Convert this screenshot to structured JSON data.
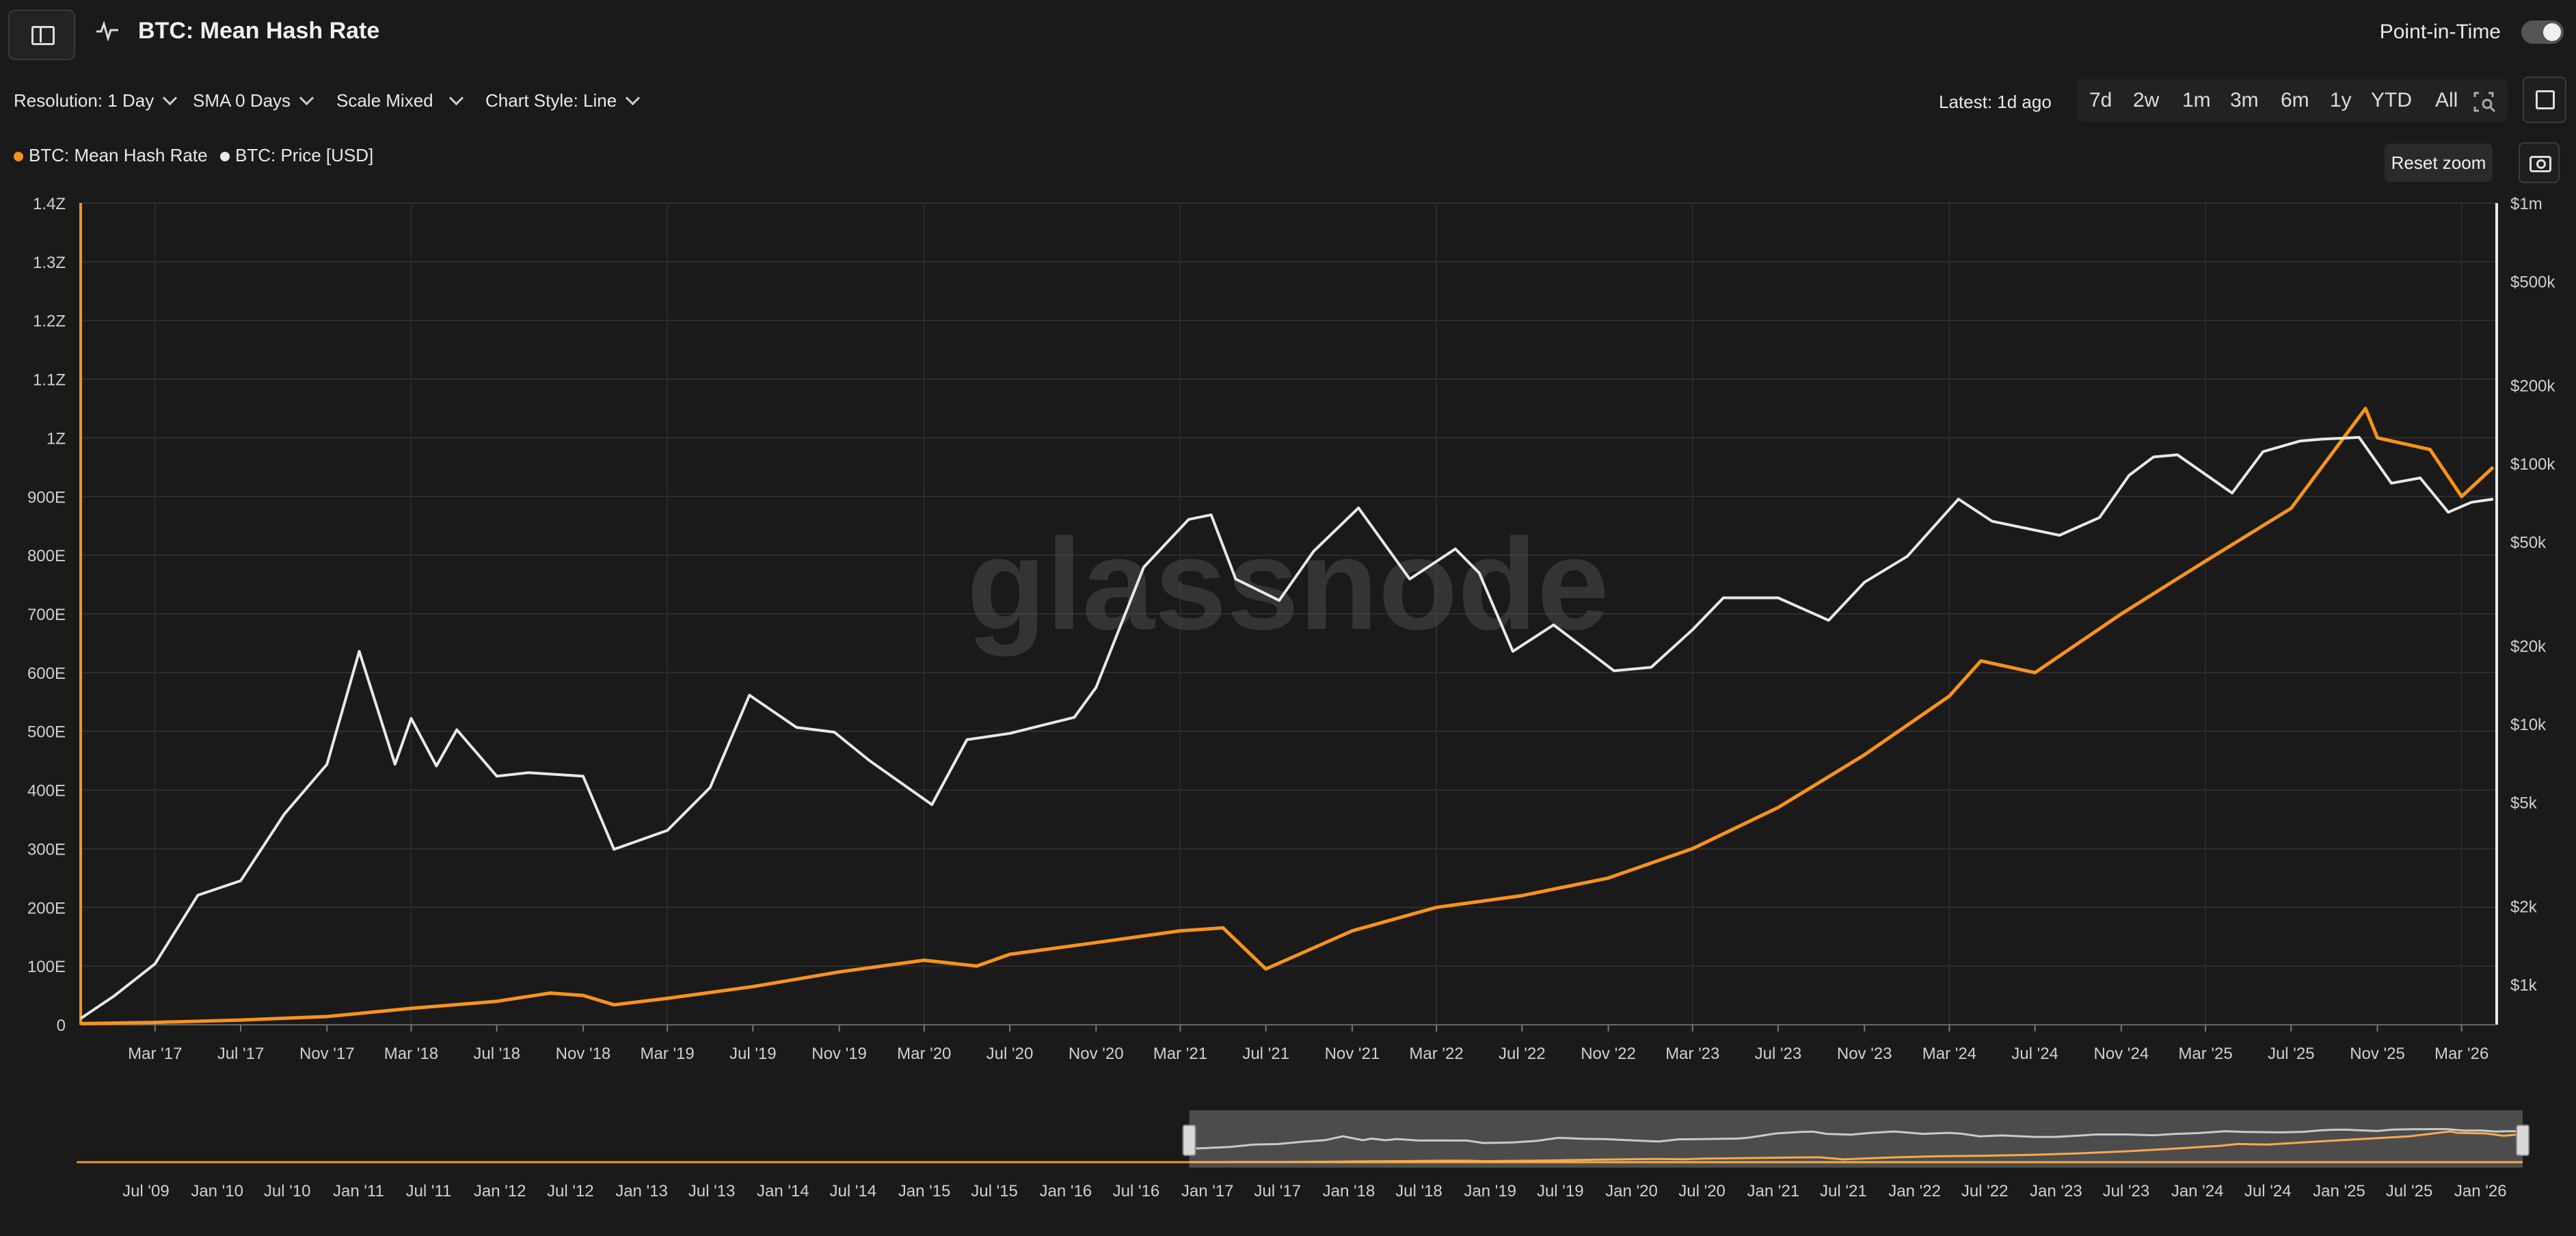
{
  "header": {
    "title": "BTC: Mean Hash Rate",
    "point_in_time_label": "Point-in-Time"
  },
  "controls": {
    "resolution": "Resolution: 1 Day",
    "sma": "SMA 0 Days",
    "scale": "Scale Mixed",
    "chart_style": "Chart Style: Line",
    "latest": "Latest: 1d ago",
    "ranges": [
      "7d",
      "2w",
      "1m",
      "3m",
      "6m",
      "1y",
      "YTD",
      "All"
    ],
    "reset_zoom": "Reset zoom"
  },
  "watermark": "glassnode",
  "colors": {
    "hash_rate": "#f7931a",
    "price": "#e8e8e8",
    "background": "#1a1a1a"
  },
  "chart_data": {
    "type": "line",
    "legend_placement": "top-left",
    "grid": true,
    "x_range": [
      "2016-11-15",
      "2026-04-20"
    ],
    "x_ticks": [
      "Mar '17",
      "Jul '17",
      "Nov '17",
      "Mar '18",
      "Jul '18",
      "Nov '18",
      "Mar '19",
      "Jul '19",
      "Nov '19",
      "Mar '20",
      "Jul '20",
      "Nov '20",
      "Mar '21",
      "Jul '21",
      "Nov '21",
      "Mar '22",
      "Jul '22",
      "Nov '22",
      "Mar '23",
      "Jul '23",
      "Nov '23",
      "Mar '24",
      "Jul '24",
      "Nov '24",
      "Mar '25",
      "Jul '25",
      "Nov '25",
      "Mar '26"
    ],
    "y_left": {
      "scale": "linear",
      "unit": "E",
      "range": [
        0,
        1400
      ],
      "tick_values": [
        0,
        100,
        200,
        300,
        400,
        500,
        600,
        700,
        800,
        900,
        1000,
        1100,
        1200,
        1300,
        1400
      ],
      "tick_labels": [
        "0",
        "100E",
        "200E",
        "300E",
        "400E",
        "500E",
        "600E",
        "700E",
        "800E",
        "900E",
        "1Z",
        "1.1Z",
        "1.2Z",
        "1.3Z",
        "1.4Z"
      ]
    },
    "y_right": {
      "scale": "log",
      "range": [
        700,
        1000000
      ],
      "tick_values": [
        1000,
        2000,
        5000,
        10000,
        20000,
        50000,
        100000,
        200000,
        500000,
        1000000
      ],
      "tick_labels": [
        "$1k",
        "$2k",
        "$5k",
        "$10k",
        "$20k",
        "$50k",
        "$100k",
        "$200k",
        "$500k",
        "$1m"
      ]
    },
    "series": [
      {
        "name": "BTC: Mean Hash Rate",
        "axis": "left",
        "x": [
          "2016-11-15",
          "2017-03-01",
          "2017-07-01",
          "2017-11-01",
          "2018-03-01",
          "2018-07-01",
          "2018-09-15",
          "2018-11-01",
          "2018-12-15",
          "2019-03-01",
          "2019-07-01",
          "2019-11-01",
          "2020-03-01",
          "2020-05-15",
          "2020-07-01",
          "2020-11-01",
          "2021-03-01",
          "2021-05-01",
          "2021-07-01",
          "2021-11-01",
          "2022-03-01",
          "2022-07-01",
          "2022-11-01",
          "2023-03-01",
          "2023-07-01",
          "2023-11-01",
          "2024-03-01",
          "2024-04-15",
          "2024-07-01",
          "2024-11-01",
          "2025-03-01",
          "2025-07-01",
          "2025-10-15",
          "2025-11-01",
          "2026-01-15",
          "2026-03-01",
          "2026-04-15"
        ],
        "y": [
          2,
          4,
          8,
          14,
          28,
          40,
          54,
          50,
          34,
          45,
          65,
          90,
          110,
          100,
          120,
          140,
          160,
          165,
          95,
          160,
          200,
          220,
          250,
          300,
          370,
          460,
          560,
          620,
          600,
          700,
          790,
          880,
          1050,
          1000,
          980,
          900,
          950
        ]
      },
      {
        "name": "BTC: Price [USD]",
        "axis": "right",
        "x": [
          "2016-11-15",
          "2017-01-01",
          "2017-03-01",
          "2017-05-01",
          "2017-07-01",
          "2017-09-01",
          "2017-11-01",
          "2017-12-17",
          "2018-02-06",
          "2018-03-01",
          "2018-04-06",
          "2018-05-05",
          "2018-07-01",
          "2018-08-15",
          "2018-11-01",
          "2018-12-15",
          "2019-03-01",
          "2019-05-01",
          "2019-06-26",
          "2019-09-01",
          "2019-10-25",
          "2019-12-15",
          "2020-03-12",
          "2020-05-01",
          "2020-07-01",
          "2020-10-01",
          "2020-11-01",
          "2021-01-08",
          "2021-03-13",
          "2021-04-14",
          "2021-05-19",
          "2021-07-20",
          "2021-09-07",
          "2021-11-10",
          "2022-01-22",
          "2022-03-28",
          "2022-05-01",
          "2022-06-18",
          "2022-08-15",
          "2022-11-09",
          "2023-01-01",
          "2023-03-01",
          "2023-04-14",
          "2023-07-01",
          "2023-09-11",
          "2023-11-01",
          "2024-01-01",
          "2024-03-14",
          "2024-05-01",
          "2024-08-05",
          "2024-10-01",
          "2024-11-12",
          "2024-12-17",
          "2025-01-20",
          "2025-04-08",
          "2025-05-22",
          "2025-07-14",
          "2025-08-14",
          "2025-10-06",
          "2025-11-21",
          "2026-01-01",
          "2026-02-10",
          "2026-03-15",
          "2026-04-15"
        ],
        "y": [
          740,
          900,
          1200,
          2200,
          2500,
          4500,
          7000,
          19000,
          7000,
          10500,
          6900,
          9500,
          6300,
          6500,
          6300,
          3300,
          3900,
          5700,
          12900,
          9700,
          9300,
          7200,
          4900,
          8700,
          9200,
          10600,
          13800,
          40000,
          61000,
          63500,
          36000,
          29800,
          46000,
          67500,
          36000,
          47000,
          38000,
          19000,
          24000,
          16000,
          16500,
          23000,
          30500,
          30500,
          25000,
          35000,
          44000,
          73000,
          60000,
          53000,
          62000,
          90000,
          106000,
          108000,
          77000,
          111000,
          122000,
          124000,
          126000,
          84000,
          88000,
          65000,
          71000,
          73000
        ]
      }
    ],
    "navigator": {
      "x_range": [
        "2009-01-03",
        "2026-04-20"
      ],
      "x_ticks": [
        "Jul '09",
        "Jan '10",
        "Jul '10",
        "Jan '11",
        "Jul '11",
        "Jan '12",
        "Jul '12",
        "Jan '13",
        "Jul '13",
        "Jan '14",
        "Jul '14",
        "Jan '15",
        "Jul '15",
        "Jan '16",
        "Jul '16",
        "Jan '17",
        "Jul '17",
        "Jan '18",
        "Jul '18",
        "Jan '19",
        "Jul '19",
        "Jan '20",
        "Jul '20",
        "Jan '21",
        "Jul '21",
        "Jan '22",
        "Jul '22",
        "Jan '23",
        "Jul '23",
        "Jan '24",
        "Jul '24",
        "Jan '25",
        "Jul '25",
        "Jan '26"
      ],
      "selected_range": [
        "2016-11-15",
        "2026-04-20"
      ]
    }
  }
}
